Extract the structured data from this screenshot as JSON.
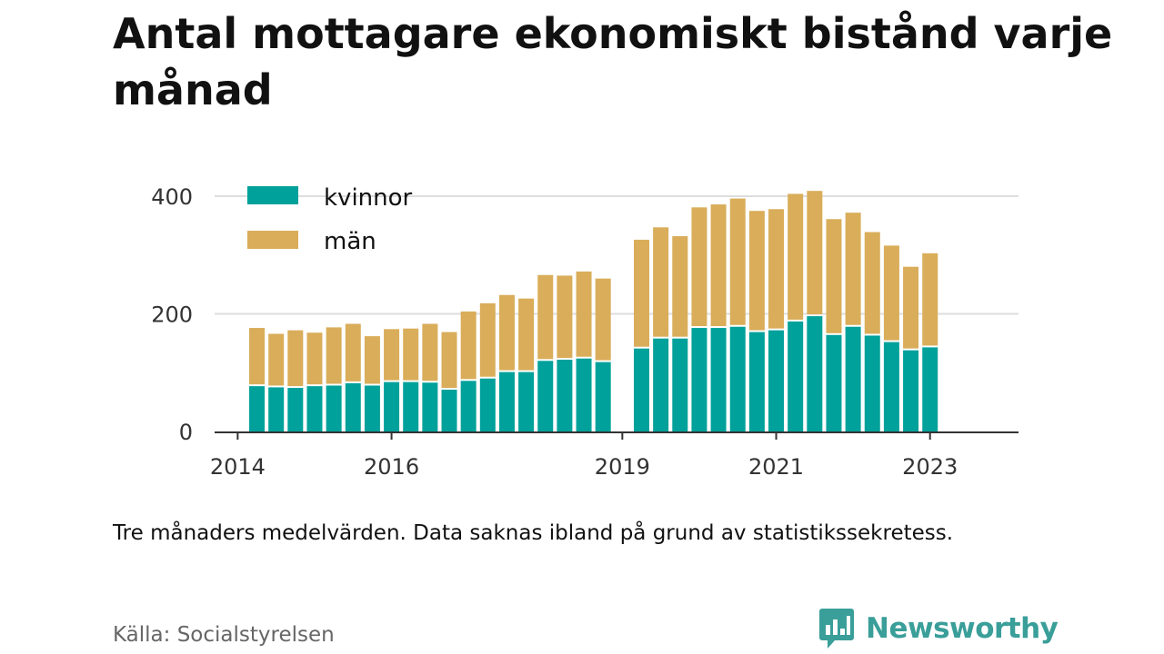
{
  "header": {
    "title": "Antal mottagare ekonomiskt bistånd varje månad"
  },
  "footer": {
    "note": "Tre månaders medelvärden. Data saknas ibland på grund av statistikssekretess.",
    "source": "Källa: Socialstyrelsen",
    "brand": "Newsworthy",
    "brand_icon": "newsworthy-logo-icon"
  },
  "colors": {
    "kvinnor": "#00a19a",
    "man": "#d9ad5a",
    "grid": "#dddddd",
    "axis": "#333333",
    "brand": "#3a9e99"
  },
  "chart_data": {
    "type": "bar",
    "stacked": true,
    "title": "Antal mottagare ekonomiskt bistånd varje månad",
    "xlabel": "",
    "ylabel": "",
    "ylim": [
      0,
      420
    ],
    "yticks": [
      0,
      200,
      400
    ],
    "xticks": [
      "2014",
      "2016",
      "2019",
      "2021",
      "2023"
    ],
    "xtick_positions": [
      2014.0,
      2016.0,
      2019.0,
      2021.0,
      2023.0
    ],
    "xlim": [
      2013.7,
      2024.15
    ],
    "grid": true,
    "legend": "top-left",
    "x": [
      2014.25,
      2014.5,
      2014.75,
      2015.0,
      2015.25,
      2015.5,
      2015.75,
      2016.0,
      2016.25,
      2016.5,
      2016.75,
      2017.0,
      2017.25,
      2017.5,
      2017.75,
      2018.0,
      2018.25,
      2018.5,
      2018.75,
      2019.0,
      2019.25,
      2019.5,
      2019.75,
      2020.0,
      2020.25,
      2020.5,
      2020.75,
      2021.0,
      2021.25,
      2021.5,
      2021.75,
      2022.0,
      2022.25,
      2022.5,
      2022.75,
      2023.0,
      2023.25
    ],
    "series": [
      {
        "name": "kvinnor",
        "values": [
          77,
          75,
          74,
          77,
          78,
          82,
          78,
          84,
          84,
          83,
          71,
          86,
          90,
          101,
          101,
          120,
          122,
          124,
          118,
          null,
          141,
          158,
          158,
          176,
          176,
          178,
          169,
          172,
          187,
          196,
          164,
          178,
          163,
          152,
          138,
          143,
          null
        ]
      },
      {
        "name": "män",
        "values": [
          99,
          91,
          98,
          91,
          99,
          101,
          84,
          90,
          91,
          100,
          98,
          118,
          128,
          131,
          125,
          146,
          143,
          148,
          142,
          null,
          185,
          189,
          174,
          205,
          210,
          218,
          206,
          206,
          217,
          213,
          197,
          194,
          176,
          164,
          142,
          160,
          null
        ]
      }
    ]
  }
}
